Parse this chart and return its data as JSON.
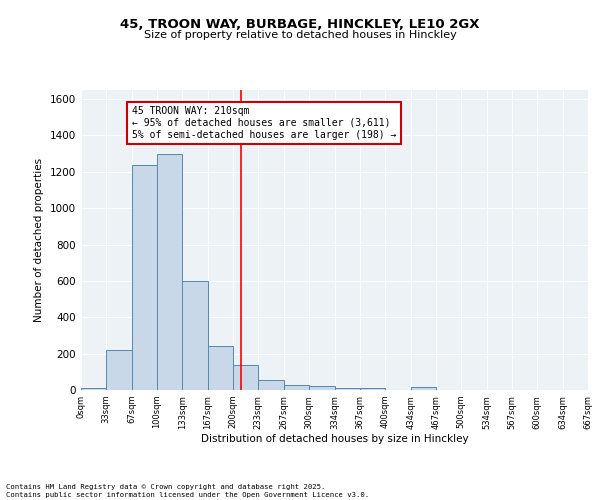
{
  "title1": "45, TROON WAY, BURBAGE, HINCKLEY, LE10 2GX",
  "title2": "Size of property relative to detached houses in Hinckley",
  "xlabel": "Distribution of detached houses by size in Hinckley",
  "ylabel": "Number of detached properties",
  "bin_edges": [
    0,
    33,
    67,
    100,
    133,
    167,
    200,
    233,
    267,
    300,
    334,
    367,
    400,
    434,
    467,
    500,
    534,
    567,
    600,
    634,
    667
  ],
  "bar_heights": [
    10,
    220,
    1240,
    1300,
    600,
    240,
    140,
    55,
    25,
    20,
    10,
    10,
    0,
    15,
    0,
    0,
    0,
    0,
    0,
    0
  ],
  "bar_color": "#c8d8e8",
  "bar_edge_color": "#5588aa",
  "red_line_x": 210,
  "annotation_text": "45 TROON WAY: 210sqm\n← 95% of detached houses are smaller (3,611)\n5% of semi-detached houses are larger (198) →",
  "annotation_box_color": "#ffffff",
  "annotation_box_edge_color": "#cc0000",
  "ylim": [
    0,
    1650
  ],
  "yticks": [
    0,
    200,
    400,
    600,
    800,
    1000,
    1200,
    1400,
    1600
  ],
  "bg_color": "#edf2f7",
  "footer1": "Contains HM Land Registry data © Crown copyright and database right 2025.",
  "footer2": "Contains public sector information licensed under the Open Government Licence v3.0."
}
